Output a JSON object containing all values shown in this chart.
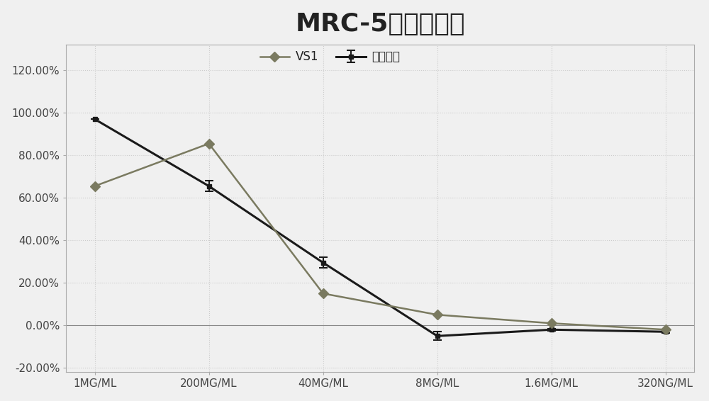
{
  "title": "MRC-5细胞抑制率",
  "x_labels": [
    "1MG/ML",
    "200MG/ML",
    "40MG/ML",
    "8MG/ML",
    "1.6MG/ML",
    "320NG/ML"
  ],
  "vs1_values": [
    0.655,
    0.855,
    0.15,
    0.05,
    0.01,
    -0.02
  ],
  "vs1_errors": [
    0.0,
    0.0,
    0.0,
    0.0,
    0.0,
    0.0
  ],
  "nimositing_values": [
    0.97,
    0.655,
    0.295,
    -0.05,
    -0.02,
    -0.03
  ],
  "nimositing_errors": [
    0.0,
    0.025,
    0.025,
    0.02,
    0.005,
    0.005
  ],
  "vs1_color": "#7a7a60",
  "nimositing_color": "#1a1a1a",
  "vs1_label": "VS1",
  "nimositing_label": "尼莫司丁",
  "ylim_min": -0.22,
  "ylim_max": 0.135,
  "yticks": [
    -0.2,
    0.0,
    0.2,
    0.4,
    0.6,
    0.8,
    1.0,
    1.2
  ],
  "background_color": "#f0f0f0",
  "title_fontsize": 26,
  "legend_fontsize": 12,
  "tick_fontsize": 11
}
